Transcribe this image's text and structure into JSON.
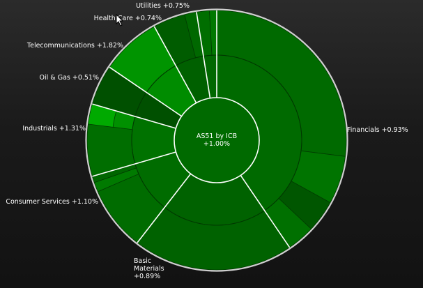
{
  "chart_data": {
    "type": "sunburst",
    "title": "AS51 by ICB",
    "subtitle": "+1.00%",
    "sectors": [
      {
        "name": "Financials",
        "change": "+0.93%",
        "weight": 40.5,
        "color": "#006a00",
        "inner": [
          {
            "w": 27,
            "color": "#006a00"
          },
          {
            "w": 6,
            "color": "#007400"
          },
          {
            "w": 4,
            "color": "#005600"
          },
          {
            "w": 3.5,
            "color": "#007000"
          }
        ]
      },
      {
        "name": "Basic Materials",
        "change": "+0.89%",
        "weight": 20,
        "color": "#006200",
        "inner": [
          {
            "w": 20,
            "color": "#006200"
          }
        ]
      },
      {
        "name": "Consumer Services",
        "change": "+1.10%",
        "weight": 10,
        "color": "#006c00",
        "inner": [
          {
            "w": 8,
            "color": "#006c00"
          },
          {
            "w": 1.2,
            "color": "#007a00"
          },
          {
            "w": 0.8,
            "color": "#006600"
          }
        ]
      },
      {
        "name": "Industrials",
        "change": "+1.31%",
        "weight": 9,
        "color": "#007200",
        "inner": [
          {
            "w": 6.5,
            "color": "#006e00"
          },
          {
            "w": 2.5,
            "color": "#009000"
          }
        ]
      },
      {
        "name": "Oil & Gas",
        "change": "+0.51%",
        "weight": 5,
        "color": "#005000",
        "inner": [
          {
            "w": 5,
            "color": "#005000"
          }
        ]
      },
      {
        "name": "Telecommunications",
        "change": "+1.82%",
        "weight": 7.5,
        "color": "#008c00",
        "inner": [
          {
            "w": 7.5,
            "color": "#009400"
          }
        ]
      },
      {
        "name": "Health Care",
        "change": "+0.74%",
        "weight": 5.5,
        "color": "#006000",
        "inner": [
          {
            "w": 4,
            "color": "#005c00"
          },
          {
            "w": 1.5,
            "color": "#006800"
          }
        ]
      },
      {
        "name": "Utilities",
        "change": "+0.75%",
        "weight": 2.5,
        "color": "#006800",
        "inner": [
          {
            "w": 1.6,
            "color": "#006e00"
          },
          {
            "w": 0.9,
            "color": "#007800"
          }
        ]
      }
    ],
    "extra_segment_color": "#00aa00"
  }
}
